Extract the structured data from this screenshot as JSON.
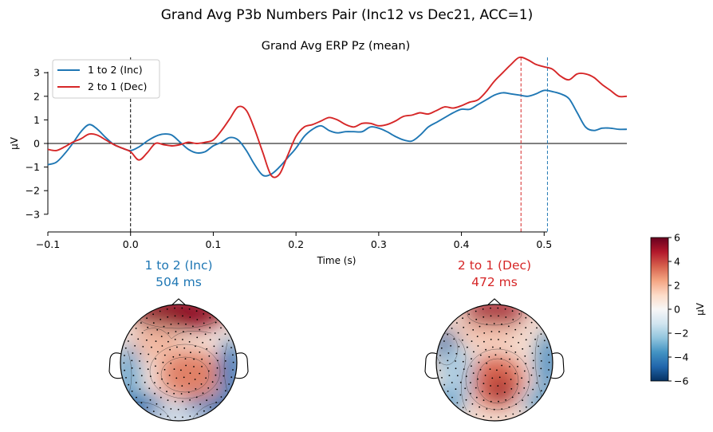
{
  "suptitle": "Grand Avg P3b Numbers Pair (Inc12 vs Dec21, ACC=1)",
  "colors": {
    "inc": "#1f77b4",
    "dec": "#d62728"
  },
  "chart_data": [
    {
      "type": "line",
      "title": "Grand Avg ERP Pz (mean)",
      "xlabel": "Time (s)",
      "ylabel": "µV",
      "xlim": [
        -0.1,
        0.6
      ],
      "ylim": [
        -3.7,
        3.7
      ],
      "xticks": [
        -0.1,
        0.0,
        0.1,
        0.2,
        0.3,
        0.4,
        0.5
      ],
      "yticks": [
        -3,
        -2,
        -1,
        0,
        1,
        2,
        3
      ],
      "xtick_labels": [
        "−0.1",
        "0.0",
        "0.1",
        "0.2",
        "0.3",
        "0.4",
        "0.5"
      ],
      "ytick_labels": [
        "−3",
        "−2",
        "−1",
        "0",
        "1",
        "2",
        "3"
      ],
      "legend_position": "top-left",
      "vertical_markers": [
        {
          "x": 0.0,
          "color": "#000000",
          "style": "dashed"
        },
        {
          "x": 0.472,
          "color": "#d62728",
          "style": "dashed"
        },
        {
          "x": 0.504,
          "color": "#1f77b4",
          "style": "dashed"
        }
      ],
      "series": [
        {
          "name": "1 to 2 (Inc)",
          "color": "#1f77b4",
          "x": [
            -0.1,
            -0.09,
            -0.08,
            -0.07,
            -0.06,
            -0.05,
            -0.04,
            -0.03,
            -0.02,
            -0.01,
            0.0,
            0.01,
            0.02,
            0.03,
            0.04,
            0.05,
            0.06,
            0.07,
            0.08,
            0.09,
            0.1,
            0.11,
            0.12,
            0.13,
            0.14,
            0.15,
            0.16,
            0.17,
            0.18,
            0.19,
            0.2,
            0.21,
            0.22,
            0.23,
            0.24,
            0.25,
            0.26,
            0.27,
            0.28,
            0.29,
            0.3,
            0.31,
            0.32,
            0.33,
            0.34,
            0.35,
            0.36,
            0.37,
            0.38,
            0.39,
            0.4,
            0.41,
            0.42,
            0.43,
            0.44,
            0.45,
            0.46,
            0.47,
            0.48,
            0.49,
            0.5,
            0.51,
            0.52,
            0.53,
            0.54,
            0.55,
            0.56,
            0.57,
            0.58,
            0.59,
            0.6
          ],
          "y": [
            -0.9,
            -0.8,
            -0.45,
            0.0,
            0.5,
            0.8,
            0.6,
            0.25,
            -0.05,
            -0.2,
            -0.3,
            -0.15,
            0.1,
            0.3,
            0.4,
            0.35,
            0.05,
            -0.25,
            -0.4,
            -0.35,
            -0.1,
            0.05,
            0.25,
            0.15,
            -0.3,
            -0.9,
            -1.35,
            -1.3,
            -1.0,
            -0.6,
            -0.2,
            0.3,
            0.6,
            0.75,
            0.55,
            0.45,
            0.5,
            0.5,
            0.5,
            0.7,
            0.65,
            0.5,
            0.3,
            0.15,
            0.1,
            0.35,
            0.7,
            0.9,
            1.1,
            1.3,
            1.45,
            1.45,
            1.65,
            1.85,
            2.05,
            2.15,
            2.1,
            2.05,
            2.0,
            2.1,
            2.25,
            2.2,
            2.1,
            1.9,
            1.3,
            0.7,
            0.55,
            0.65,
            0.65,
            0.6,
            0.6
          ]
        },
        {
          "name": "2 to 1 (Dec)",
          "color": "#d62728",
          "x": [
            -0.1,
            -0.09,
            -0.08,
            -0.07,
            -0.06,
            -0.05,
            -0.04,
            -0.03,
            -0.02,
            -0.01,
            0.0,
            0.01,
            0.02,
            0.03,
            0.04,
            0.05,
            0.06,
            0.07,
            0.08,
            0.09,
            0.1,
            0.11,
            0.12,
            0.13,
            0.14,
            0.15,
            0.16,
            0.17,
            0.18,
            0.19,
            0.2,
            0.21,
            0.22,
            0.23,
            0.24,
            0.25,
            0.26,
            0.27,
            0.28,
            0.29,
            0.3,
            0.31,
            0.32,
            0.33,
            0.34,
            0.35,
            0.36,
            0.37,
            0.38,
            0.39,
            0.4,
            0.41,
            0.42,
            0.43,
            0.44,
            0.45,
            0.46,
            0.47,
            0.48,
            0.49,
            0.5,
            0.51,
            0.52,
            0.53,
            0.54,
            0.55,
            0.56,
            0.57,
            0.58,
            0.59,
            0.6
          ],
          "y": [
            -0.25,
            -0.3,
            -0.15,
            0.05,
            0.2,
            0.4,
            0.35,
            0.15,
            -0.05,
            -0.2,
            -0.35,
            -0.7,
            -0.4,
            0.0,
            -0.05,
            -0.1,
            -0.05,
            0.05,
            0.0,
            0.05,
            0.15,
            0.55,
            1.05,
            1.55,
            1.4,
            0.6,
            -0.4,
            -1.35,
            -1.3,
            -0.5,
            0.3,
            0.7,
            0.8,
            0.95,
            1.1,
            1.0,
            0.8,
            0.7,
            0.85,
            0.85,
            0.75,
            0.8,
            0.95,
            1.15,
            1.2,
            1.3,
            1.25,
            1.4,
            1.55,
            1.5,
            1.6,
            1.75,
            1.85,
            2.2,
            2.65,
            3.0,
            3.35,
            3.65,
            3.55,
            3.35,
            3.25,
            3.15,
            2.85,
            2.7,
            2.95,
            2.95,
            2.8,
            2.5,
            2.25,
            2.0,
            2.0
          ]
        }
      ]
    },
    {
      "type": "heatmap",
      "panels": [
        {
          "label": "1 to 2 (Inc)",
          "time": "504 ms",
          "color": "#1f77b4"
        },
        {
          "label": "2 to 1 (Dec)",
          "time": "472 ms",
          "color": "#d62728"
        }
      ],
      "colorbar": {
        "label": "µV",
        "range": [
          -6,
          6
        ],
        "ticks": [
          -6,
          -4,
          -2,
          0,
          2,
          4,
          6
        ],
        "tick_labels": [
          "−6",
          "−4",
          "−2",
          "0",
          "2",
          "4",
          "6"
        ],
        "colormap": "RdBu_r"
      }
    }
  ]
}
